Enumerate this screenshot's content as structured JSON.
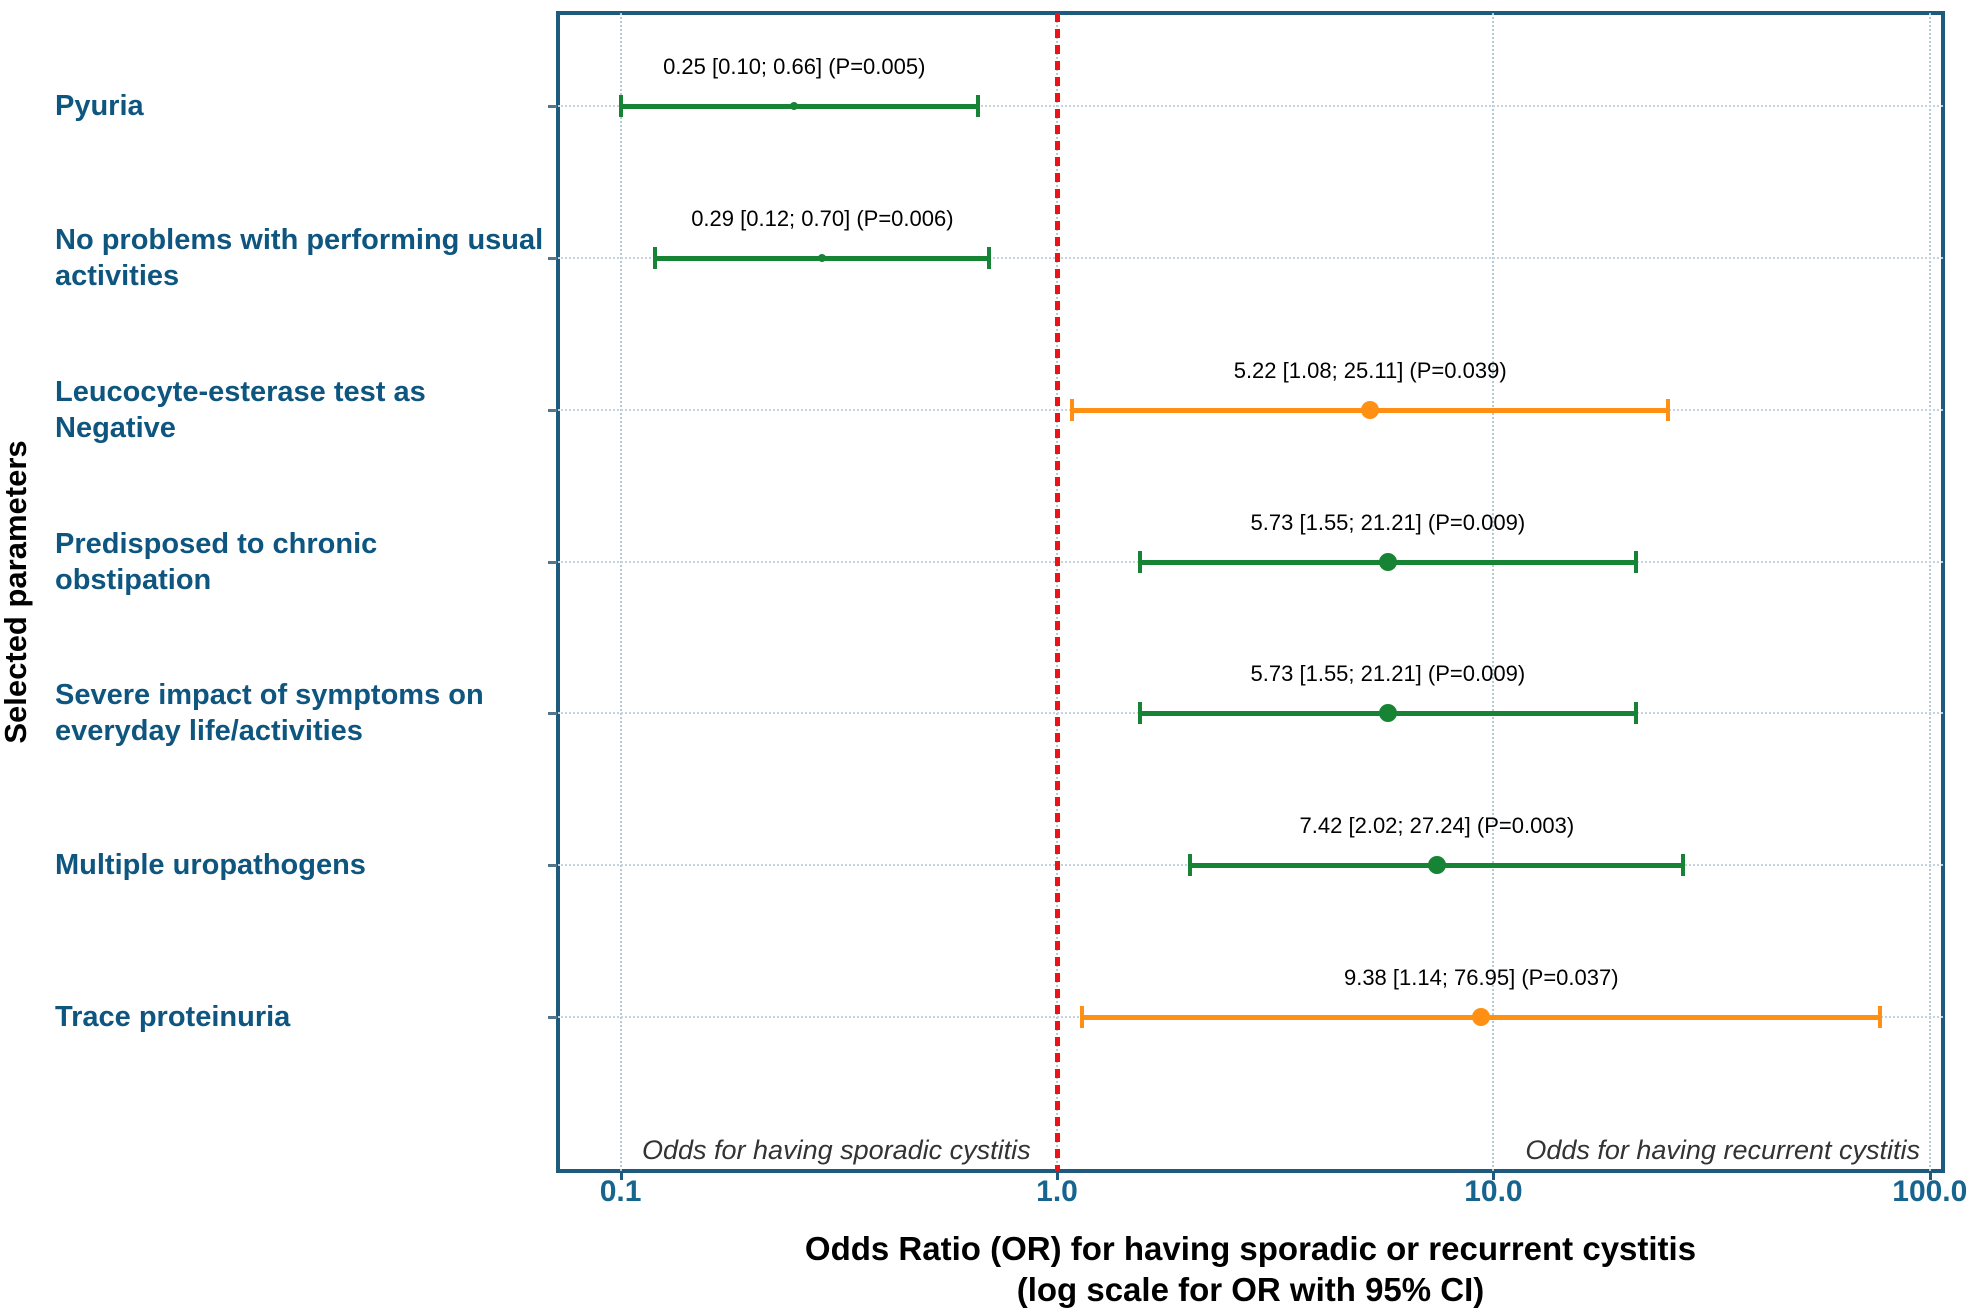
{
  "colors": {
    "green": "#168434",
    "orange": "#ff9014",
    "red_reference": "#ee1212",
    "frame_blue": "#1d5a7d",
    "category_blue": "#0e567f",
    "tick_blue": "#17648f",
    "gridline": "#b4cad7"
  },
  "chart_data": {
    "type": "scatter",
    "subtype": "forest-plot",
    "title_line1": "Odds Ratio (OR) for having sporadic or recurrent cystitis",
    "title_line2": "(log scale for OR with 95% CI)",
    "ylabel": "Selected parameters",
    "xlabel": "Odds Ratio (OR), log scale",
    "x_scale": "log",
    "xlim": [
      0.1,
      100
    ],
    "x_ticks": [
      "0.1",
      "1.0",
      "10.0",
      "100.0"
    ],
    "x_tick_values": [
      0.1,
      1,
      10,
      100
    ],
    "reference_line": 1.0,
    "left_note": "Odds for having sporadic cystitis",
    "right_note": "Odds for having recurrent cystitis",
    "grid": true,
    "rows": [
      {
        "label": "Pyuria",
        "lines": [
          "Pyuria"
        ],
        "or": 0.25,
        "ci": [
          0.1,
          0.66
        ],
        "p": "0.005",
        "annotation": "0.25 [0.10; 0.66] (P=0.005)",
        "color": "green",
        "marker": "small"
      },
      {
        "label": "No problems with performing usual activities",
        "lines": [
          "No problems with performing usual",
          "activities"
        ],
        "or": 0.29,
        "ci": [
          0.12,
          0.7
        ],
        "p": "0.006",
        "annotation": "0.29 [0.12; 0.70] (P=0.006)",
        "color": "green",
        "marker": "small"
      },
      {
        "label": "Leucocyte-esterase test as Negative",
        "lines": [
          "Leucocyte-esterase test as",
          "Negative"
        ],
        "or": 5.22,
        "ci": [
          1.08,
          25.11
        ],
        "p": "0.039",
        "annotation": "5.22 [1.08; 25.11] (P=0.039)",
        "color": "orange",
        "marker": "large"
      },
      {
        "label": "Predisposed to chronic obstipation",
        "lines": [
          "Predisposed to chronic",
          "obstipation"
        ],
        "or": 5.73,
        "ci": [
          1.55,
          21.21
        ],
        "p": "0.009",
        "annotation": "5.73 [1.55; 21.21] (P=0.009)",
        "color": "green",
        "marker": "large"
      },
      {
        "label": "Severe impact of symptoms on everyday life/activities",
        "lines": [
          "Severe impact of symptoms on",
          "everyday life/activities"
        ],
        "or": 5.73,
        "ci": [
          1.55,
          21.21
        ],
        "p": "0.009",
        "annotation": "5.73 [1.55; 21.21] (P=0.009)",
        "color": "green",
        "marker": "large"
      },
      {
        "label": "Multiple uropathogens",
        "lines": [
          "Multiple uropathogens"
        ],
        "or": 7.42,
        "ci": [
          2.02,
          27.24
        ],
        "p": "0.003",
        "annotation": "7.42 [2.02; 27.24] (P=0.003)",
        "color": "green",
        "marker": "large"
      },
      {
        "label": "Trace proteinuria",
        "lines": [
          "Trace proteinuria"
        ],
        "or": 9.38,
        "ci": [
          1.14,
          76.95
        ],
        "p": "0.037",
        "annotation": "9.38 [1.14; 76.95] (P=0.037)",
        "color": "orange",
        "marker": "large"
      }
    ]
  }
}
